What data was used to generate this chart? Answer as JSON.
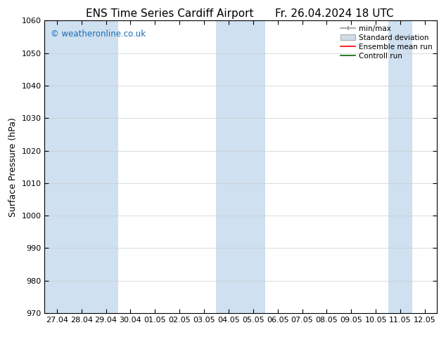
{
  "title_left": "ENS Time Series Cardiff Airport",
  "title_right": "Fr. 26.04.2024 18 UTC",
  "ylabel": "Surface Pressure (hPa)",
  "ylim": [
    970,
    1060
  ],
  "yticks": [
    970,
    980,
    990,
    1000,
    1010,
    1020,
    1030,
    1040,
    1050,
    1060
  ],
  "x_labels": [
    "27.04",
    "28.04",
    "29.04",
    "30.04",
    "01.05",
    "02.05",
    "03.05",
    "04.05",
    "05.05",
    "06.05",
    "07.05",
    "08.05",
    "09.05",
    "10.05",
    "11.05",
    "12.05"
  ],
  "shaded_columns_indices": [
    0,
    1,
    2,
    7,
    8,
    14
  ],
  "shade_color": "#cfe0f0",
  "background_color": "#ffffff",
  "watermark": "© weatheronline.co.uk",
  "watermark_color": "#1a6db5",
  "legend_entries": [
    "min/max",
    "Standard deviation",
    "Ensemble mean run",
    "Controll run"
  ],
  "grid_color": "#cccccc",
  "title_color": "#000000",
  "title_fontsize": 11,
  "tick_fontsize": 8,
  "ylabel_fontsize": 9
}
